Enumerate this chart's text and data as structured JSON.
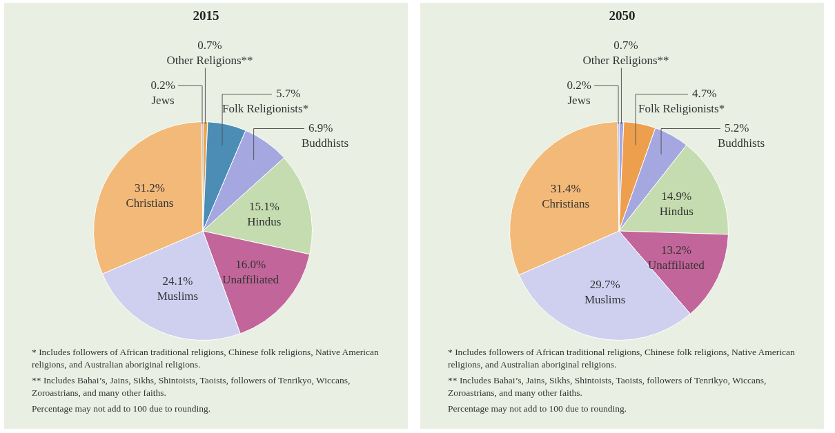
{
  "chart_data": [
    {
      "type": "pie",
      "title": "2015",
      "categories": [
        "Other Religions**",
        "Folk Religionists*",
        "Buddhists",
        "Hindus",
        "Unaffiliated",
        "Muslims",
        "Christians",
        "Jews"
      ],
      "values": [
        0.7,
        5.7,
        6.9,
        15.1,
        16.0,
        24.1,
        31.2,
        0.2
      ],
      "colors": [
        "#e9a650",
        "#4b8db5",
        "#a5a8e0",
        "#c5dcb0",
        "#c2659a",
        "#cfd0f0",
        "#f2b978",
        "#8c8fa8"
      ],
      "value_labels": [
        "0.7%",
        "5.7%",
        "6.9%",
        "15.1%",
        "16.0%",
        "24.1%",
        "31.2%",
        "0.2%"
      ],
      "annotations": [
        "* Includes followers of African traditional religions, Chinese folk religions, Native American religions, and Australian aboriginal religions.",
        "** Includes Bahai’s, Jains, Sikhs, Shintoists, Taoists, followers of Tenrikyo, Wiccans, Zoroastrians, and many other faiths.",
        "Percentage may not add to 100 due to rounding."
      ]
    },
    {
      "type": "pie",
      "title": "2050",
      "categories": [
        "Other Religions**",
        "Folk Religionists*",
        "Buddhists",
        "Hindus",
        "Unaffiliated",
        "Muslims",
        "Christians",
        "Jews"
      ],
      "values": [
        0.7,
        4.7,
        5.2,
        14.9,
        13.2,
        29.7,
        31.4,
        0.2
      ],
      "colors": [
        "#a5a8e0",
        "#ee9f4e",
        "#a5a8e0",
        "#c5dcb0",
        "#c2659a",
        "#cfd0f0",
        "#f2b978",
        "#8c8fa8"
      ],
      "value_labels": [
        "0.7%",
        "4.7%",
        "5.2%",
        "14.9%",
        "13.2%",
        "29.7%",
        "31.4%",
        "0.2%"
      ],
      "annotations": [
        "* Includes followers of African traditional religions, Chinese folk religions, Native American religions, and Australian aboriginal religions.",
        "** Includes Bahai’s, Jains, Sikhs, Shintoists, Taoists, followers of Tenrikyo, Wiccans, Zoroastrians, and many other faiths.",
        "Percentage may not add to 100 due to rounding."
      ]
    }
  ]
}
